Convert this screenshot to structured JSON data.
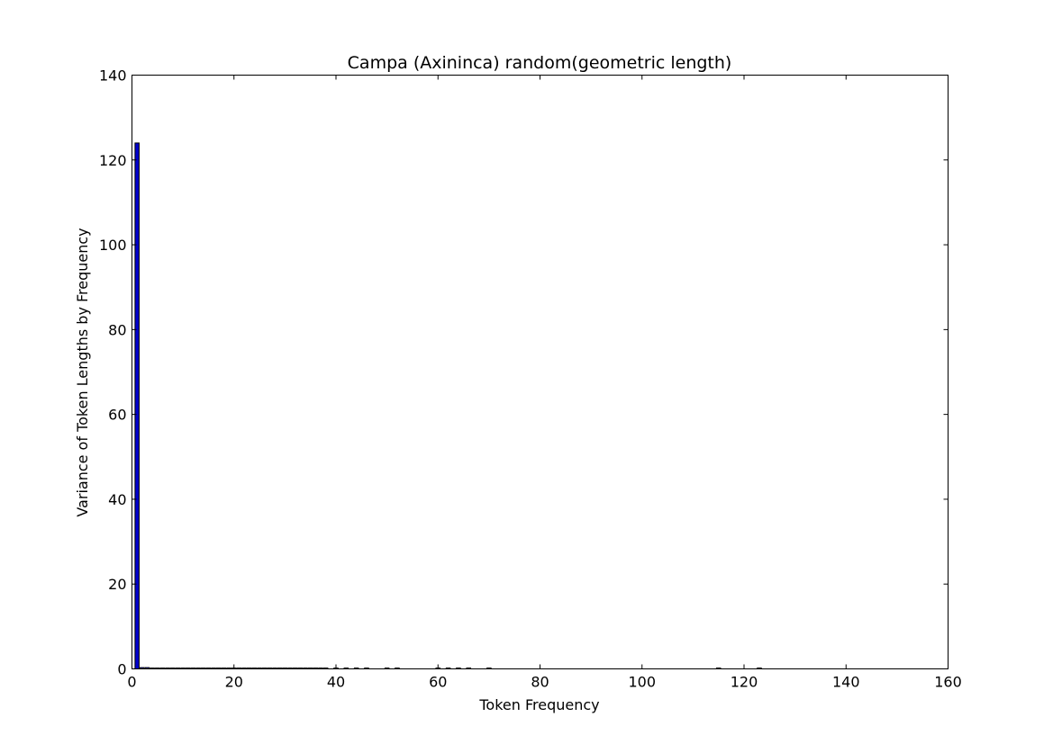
{
  "chart_data": {
    "type": "bar",
    "title": "Campa (Axininca) random(geometric length)",
    "xlabel": "Token Frequency",
    "ylabel": "Variance of Token Lengths by Frequency",
    "xlim": [
      0,
      160
    ],
    "ylim": [
      0,
      140
    ],
    "xticks": [
      0,
      20,
      40,
      60,
      80,
      100,
      120,
      140,
      160
    ],
    "yticks": [
      0,
      20,
      40,
      60,
      80,
      100,
      120,
      140
    ],
    "grid": false,
    "bar_color": "#0000cc",
    "x": [
      1,
      2,
      3,
      4,
      5,
      6,
      7,
      8,
      9,
      10,
      11,
      12,
      13,
      14,
      15,
      16,
      17,
      18,
      19,
      20,
      21,
      22,
      23,
      24,
      25,
      26,
      27,
      28,
      29,
      30,
      31,
      32,
      33,
      34,
      35,
      36,
      37,
      38,
      40,
      42,
      44,
      46,
      50,
      52,
      60,
      62,
      64,
      66,
      70,
      115,
      123
    ],
    "values": [
      124,
      0.3,
      0.3,
      0.2,
      0.2,
      0.2,
      0.2,
      0.2,
      0.2,
      0.2,
      0.2,
      0.2,
      0.2,
      0.2,
      0.2,
      0.2,
      0.2,
      0.2,
      0.2,
      0.2,
      0.2,
      0.2,
      0.2,
      0.2,
      0.2,
      0.2,
      0.2,
      0.2,
      0.2,
      0.2,
      0.2,
      0.2,
      0.2,
      0.2,
      0.2,
      0.2,
      0.2,
      0.2,
      0.2,
      0.2,
      0.2,
      0.2,
      0.2,
      0.2,
      0.2,
      0.2,
      0.2,
      0.2,
      0.2,
      0.2,
      0.2
    ]
  }
}
